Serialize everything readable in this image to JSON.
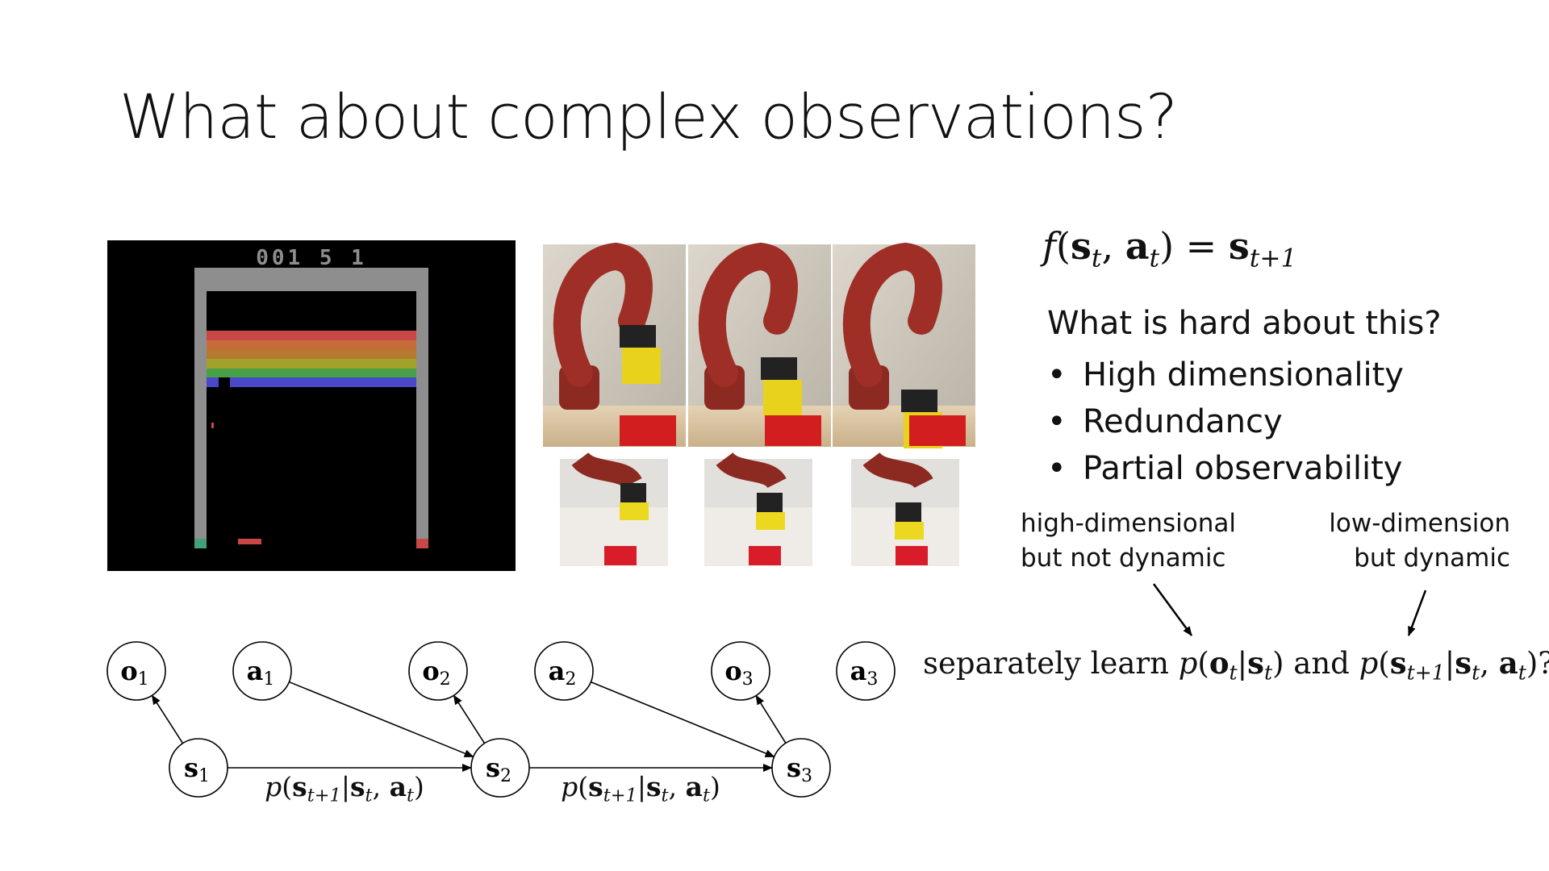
{
  "title": "What about complex observations?",
  "score": "001 5 1",
  "equation": [
    {
      "text": "f",
      "style": "math"
    },
    {
      "text": "(",
      "style": "plain"
    },
    {
      "text": "s",
      "style": "bold"
    },
    {
      "text": "t",
      "style": "sub"
    },
    {
      "text": ", ",
      "style": "plain"
    },
    {
      "text": "a",
      "style": "bold"
    },
    {
      "text": "t",
      "style": "sub"
    },
    {
      "text": ") = ",
      "style": "plain"
    },
    {
      "text": "s",
      "style": "bold"
    },
    {
      "text": "t+1",
      "style": "sub"
    }
  ],
  "question": "What is hard about this?",
  "bullets": [
    "High dimensionality",
    "Redundancy",
    "Partial observability"
  ],
  "notes": [
    [
      "high-dimensional",
      "but not dynamic"
    ],
    [
      "low-dimension",
      "but dynamic"
    ]
  ],
  "question_formula": [
    {
      "text": "separately learn ",
      "style": "plain"
    },
    {
      "text": "p",
      "style": "math"
    },
    {
      "text": "(",
      "style": "plain"
    },
    {
      "text": "o",
      "style": "bold"
    },
    {
      "text": "t",
      "style": "sub"
    },
    {
      "text": "|",
      "style": "plain"
    },
    {
      "text": "s",
      "style": "bold"
    },
    {
      "text": "t",
      "style": "sub"
    },
    {
      "text": ") and ",
      "style": "plain"
    },
    {
      "text": "p",
      "style": "math"
    },
    {
      "text": "(",
      "style": "plain"
    },
    {
      "text": "s",
      "style": "bold"
    },
    {
      "text": "t+1",
      "style": "sub"
    },
    {
      "text": "|",
      "style": "plain"
    },
    {
      "text": "s",
      "style": "bold"
    },
    {
      "text": "t",
      "style": "sub"
    },
    {
      "text": ", ",
      "style": "plain"
    },
    {
      "text": "a",
      "style": "bold"
    },
    {
      "text": "t",
      "style": "sub"
    },
    {
      "text": ")?",
      "style": "plain"
    }
  ],
  "graph": {
    "nodes": [
      {
        "symbol": "o",
        "index": "1"
      },
      {
        "symbol": "a",
        "index": "1"
      },
      {
        "symbol": "o",
        "index": "2"
      },
      {
        "symbol": "a",
        "index": "2"
      },
      {
        "symbol": "o",
        "index": "3"
      },
      {
        "symbol": "a",
        "index": "3"
      },
      {
        "symbol": "s",
        "index": "1"
      },
      {
        "symbol": "s",
        "index": "2"
      },
      {
        "symbol": "s",
        "index": "3"
      }
    ],
    "edge_labels": [
      [
        {
          "text": "p",
          "style": "math"
        },
        {
          "text": "(",
          "style": "plain"
        },
        {
          "text": "s",
          "style": "bold"
        },
        {
          "text": "t+1",
          "style": "sub"
        },
        {
          "text": "|",
          "style": "plain"
        },
        {
          "text": "s",
          "style": "bold"
        },
        {
          "text": "t",
          "style": "sub"
        },
        {
          "text": ", ",
          "style": "plain"
        },
        {
          "text": "a",
          "style": "bold"
        },
        {
          "text": "t",
          "style": "sub"
        },
        {
          "text": ")",
          "style": "plain"
        }
      ],
      [
        {
          "text": "p",
          "style": "math"
        },
        {
          "text": "(",
          "style": "plain"
        },
        {
          "text": "s",
          "style": "bold"
        },
        {
          "text": "t+1",
          "style": "sub"
        },
        {
          "text": "|",
          "style": "plain"
        },
        {
          "text": "s",
          "style": "bold"
        },
        {
          "text": "t",
          "style": "sub"
        },
        {
          "text": ", ",
          "style": "plain"
        },
        {
          "text": "a",
          "style": "bold"
        },
        {
          "text": "t",
          "style": "sub"
        },
        {
          "text": ")",
          "style": "plain"
        }
      ]
    ]
  }
}
